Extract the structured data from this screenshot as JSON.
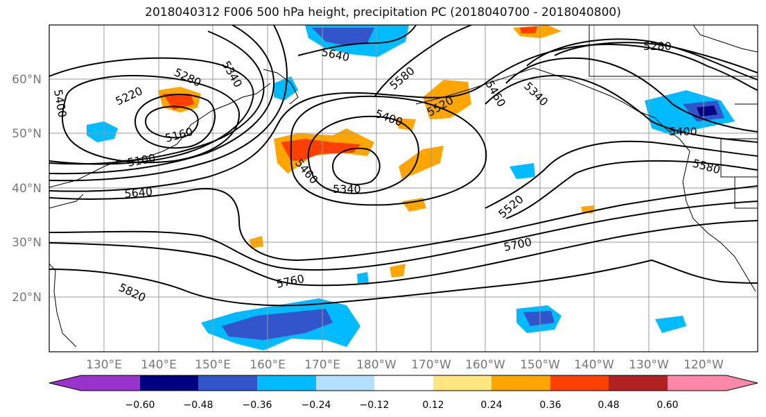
{
  "title": "2018040312 F006 500 hPa height, precipitation PC (2018040700 - 2018040800)",
  "map": {
    "lon_ticks": [
      "130°E",
      "140°E",
      "150°E",
      "160°E",
      "170°E",
      "180°W",
      "170°W",
      "160°W",
      "150°W",
      "140°W",
      "130°W",
      "120°W"
    ],
    "lat_ticks": [
      "60°N",
      "50°N",
      "40°N",
      "30°N",
      "20°N"
    ],
    "contour_labels": [
      "5640",
      "5580",
      "5520",
      "5460",
      "5280",
      "5340",
      "5400",
      "5220",
      "5160",
      "5100",
      "5340",
      "5640",
      "5460",
      "5400",
      "5340",
      "5520",
      "5700",
      "5760",
      "5820",
      "5580",
      "5400"
    ]
  },
  "colorbar": {
    "tick_labels": [
      "−0.60",
      "−0.48",
      "−0.36",
      "−0.24",
      "−0.12",
      "0.12",
      "0.24",
      "0.36",
      "0.48",
      "0.60"
    ],
    "colors": [
      "#9933cc",
      "#000080",
      "#3355cc",
      "#00bbff",
      "#b3e0ff",
      "#ffffff",
      "#ffe680",
      "#ffa500",
      "#ff4000",
      "#b22222",
      "#ff88aa"
    ]
  }
}
